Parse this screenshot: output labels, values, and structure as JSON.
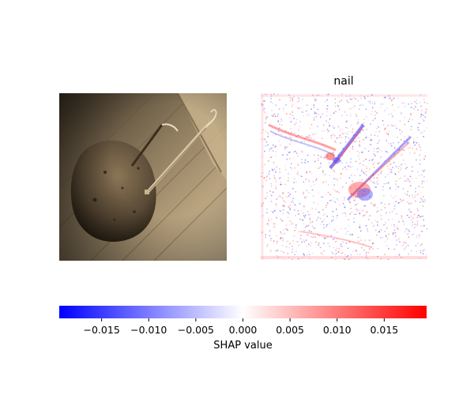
{
  "chart_data": [
    {
      "type": "image",
      "title": "",
      "description_visible": "sepia photograph input image"
    },
    {
      "type": "heatmap",
      "title": "nail",
      "colorscale": [
        "#0000ff",
        "#ffffff",
        "#ff0000"
      ],
      "colorbar": {
        "label": "SHAP value",
        "range": [
          -0.0195,
          0.0195
        ],
        "ticks": [
          -0.015,
          -0.01,
          -0.005,
          0.0,
          0.005,
          0.01,
          0.015
        ],
        "tick_labels": [
          "−0.015",
          "−0.010",
          "−0.005",
          "0.000",
          "0.005",
          "0.010",
          "0.015"
        ]
      }
    }
  ],
  "colors": {
    "negative": "#0000ff",
    "neutral": "#ffffff",
    "positive": "#ff0000",
    "sepia_dark": "#1d1710",
    "sepia_light": "#cdb994"
  }
}
